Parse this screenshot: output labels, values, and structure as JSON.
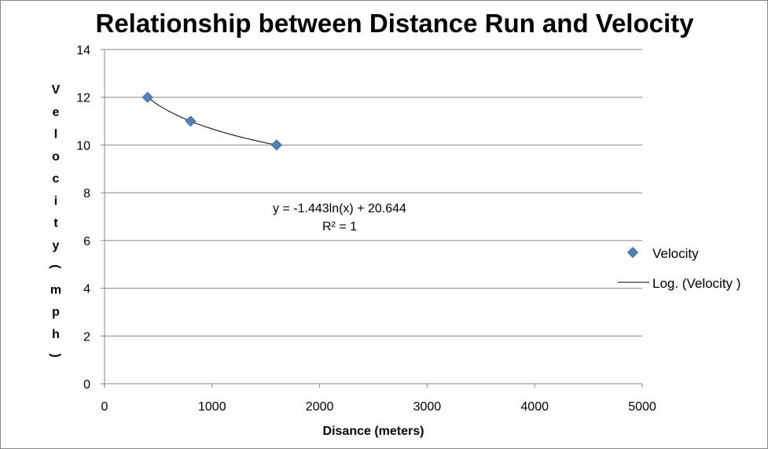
{
  "chart_data": {
    "type": "scatter",
    "title": "Relationship between Distance Run and Velocity",
    "xlabel": "Disance (meters)",
    "ylabel": "Velocity (mph)",
    "xlim": [
      0,
      5000
    ],
    "ylim": [
      0,
      14
    ],
    "xticks": [
      0,
      1000,
      2000,
      3000,
      4000,
      5000
    ],
    "yticks": [
      0,
      2,
      4,
      6,
      8,
      10,
      12,
      14
    ],
    "grid": "horizontal",
    "legend_position": "right",
    "series": [
      {
        "name": "Velocity",
        "marker": "diamond",
        "color": "#4f81bd",
        "x": [
          400,
          800,
          1600
        ],
        "y": [
          12,
          11,
          10
        ]
      }
    ],
    "trendline": {
      "name": "Log. (Velocity )",
      "type": "logarithmic",
      "slope": -1.443,
      "intercept": 20.644,
      "x_range": [
        400,
        1600
      ],
      "color": "#000000",
      "equation": "y = -1.443ln(x) + 20.644",
      "r_squared": "R² = 1"
    }
  }
}
